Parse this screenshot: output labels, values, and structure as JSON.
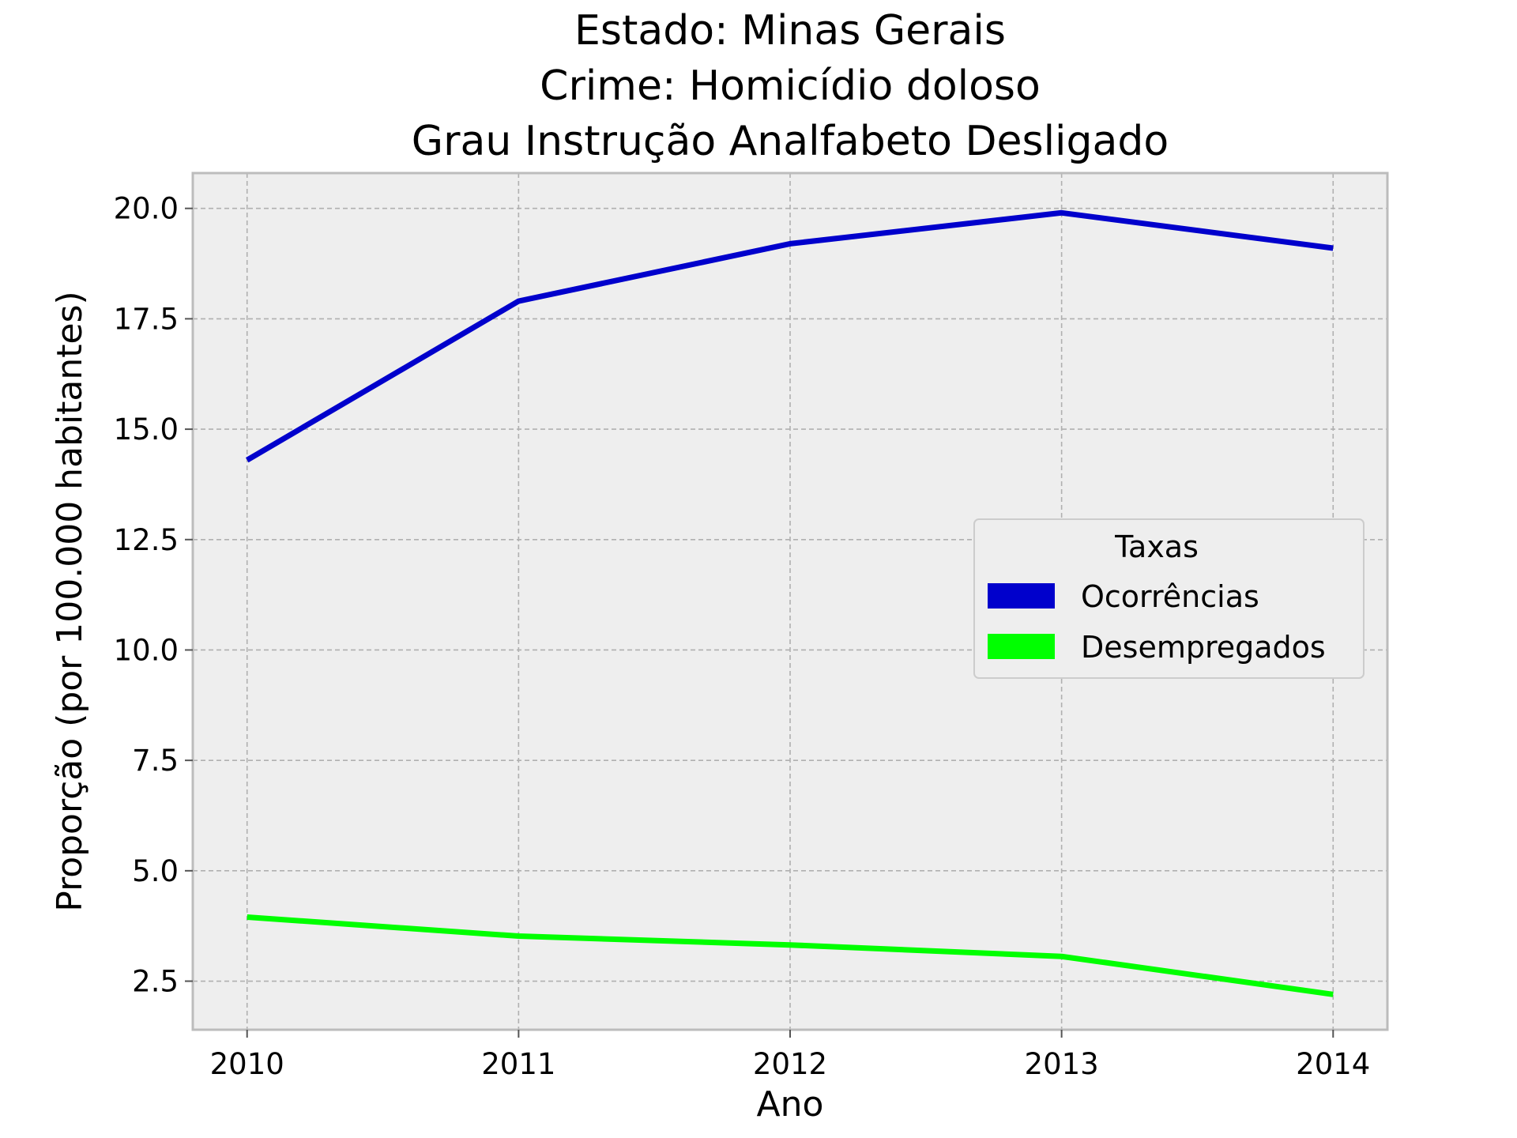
{
  "chart_data": {
    "type": "line",
    "title": [
      "Estado: Minas Gerais",
      "Crime: Homicídio doloso",
      "Grau Instrução  Analfabeto   Desligado"
    ],
    "xlabel": "Ano",
    "ylabel": "Proporção (por 100.000 habitantes)",
    "x": [
      2010,
      2011,
      2012,
      2013,
      2014
    ],
    "x_tick_labels": [
      "2010",
      "2011",
      "2012",
      "2013",
      "2014"
    ],
    "xlim": [
      2009.8,
      2014.2
    ],
    "ylim": [
      1.4,
      20.8
    ],
    "y_ticks": [
      2.5,
      5.0,
      7.5,
      10.0,
      12.5,
      15.0,
      17.5,
      20.0
    ],
    "y_tick_labels": [
      "2.5",
      "5.0",
      "7.5",
      "10.0",
      "12.5",
      "15.0",
      "17.5",
      "20.0"
    ],
    "grid": true,
    "legend": {
      "title": "Taxas",
      "placement": "center-right"
    },
    "series": [
      {
        "name": "Ocorrências",
        "color": "#0000cc",
        "values": [
          14.3,
          17.9,
          19.2,
          19.9,
          19.1
        ]
      },
      {
        "name": "Desempregados",
        "color": "#00ff00",
        "values": [
          3.95,
          3.52,
          3.32,
          3.06,
          2.2
        ]
      }
    ],
    "background": "#eeeeee",
    "frame_color": "#bcbcbc"
  }
}
